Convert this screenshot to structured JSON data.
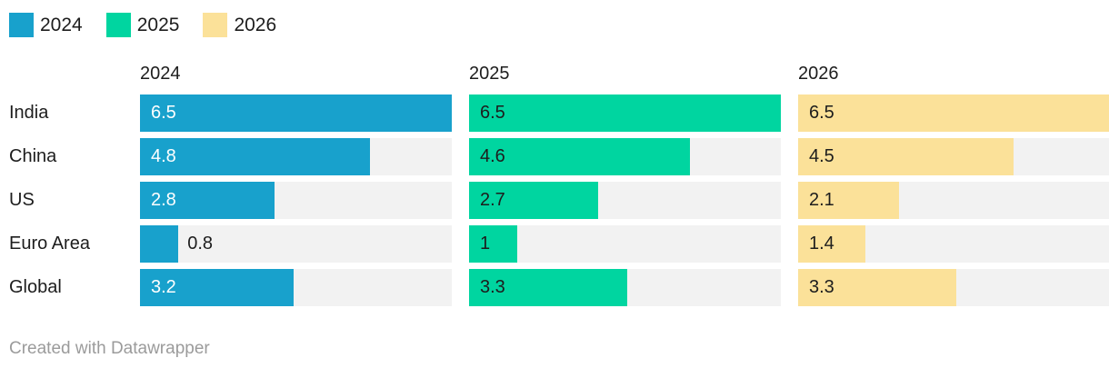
{
  "legend": {
    "items": [
      {
        "label": "2024",
        "color": "#18a1cc"
      },
      {
        "label": "2025",
        "color": "#00d5a0"
      },
      {
        "label": "2026",
        "color": "#fbe199"
      }
    ]
  },
  "chart_data": {
    "type": "bar",
    "orientation": "horizontal",
    "layout": "small multiples: one column of bars per year, shared category rows, legend top-left, value labels on bars",
    "title": "",
    "column_headers": [
      "2024",
      "2025",
      "2026"
    ],
    "categories": [
      "India",
      "China",
      "US",
      "Euro Area",
      "Global"
    ],
    "series": [
      {
        "name": "2024",
        "color": "#18a1cc",
        "values": [
          6.5,
          4.8,
          2.8,
          0.8,
          3.2
        ],
        "labels": [
          "6.5",
          "4.8",
          "2.8",
          "0.8",
          "3.2"
        ],
        "inside_label_color": "#ffffff"
      },
      {
        "name": "2025",
        "color": "#00d5a0",
        "values": [
          6.5,
          4.6,
          2.7,
          1,
          3.3
        ],
        "labels": [
          "6.5",
          "4.6",
          "2.7",
          "1",
          "3.3"
        ],
        "inside_label_color": "#1d1d1d"
      },
      {
        "name": "2026",
        "color": "#fbe199",
        "values": [
          6.5,
          4.5,
          2.1,
          1.4,
          3.3
        ],
        "labels": [
          "6.5",
          "4.5",
          "2.1",
          "1.4",
          "3.3"
        ],
        "inside_label_color": "#1d1d1d"
      }
    ],
    "xlim": [
      0,
      6.5
    ],
    "track_color": "#f2f2f2",
    "grid": false,
    "value_labels": true,
    "outside_label_threshold": 0.9,
    "outside_label_color": "#1d1d1d",
    "legend_position": "top-left"
  },
  "footer": {
    "text": "Created with Datawrapper"
  }
}
